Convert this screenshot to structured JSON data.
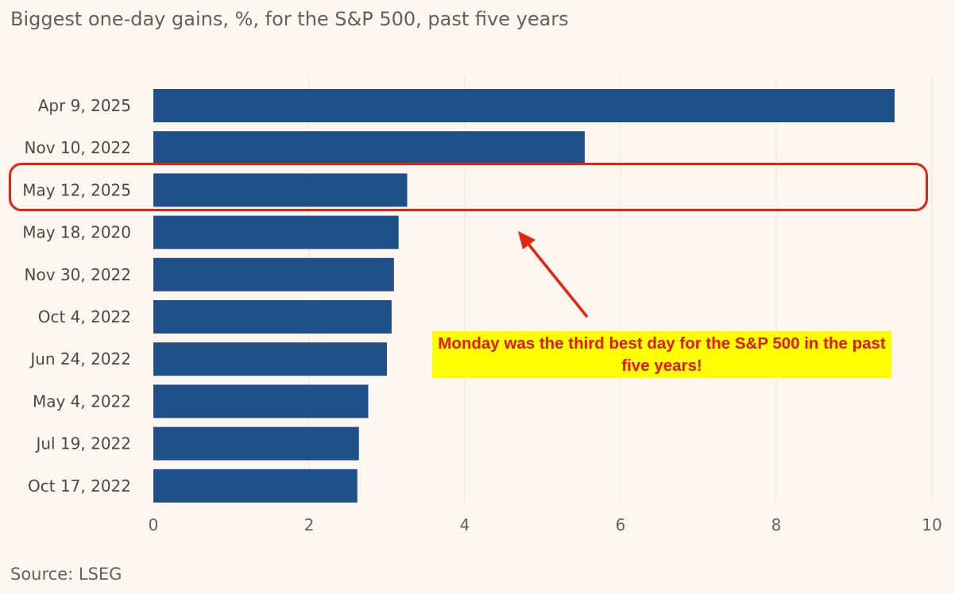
{
  "title": "Biggest one-day gains, %, for the S&P 500, past five years",
  "source": "Source: LSEG",
  "annotation": {
    "text": "Monday was the third best day for the S&P 500 in the past five years!",
    "text_color": "#e8141a",
    "box_color": "#ffff00",
    "highlight_color": "#e8220e",
    "highlighted_category": "May 12, 2025"
  },
  "colors": {
    "bar": "#1f508a",
    "background": "#fff6f0",
    "grid": "#ebe4df"
  },
  "chart_data": {
    "type": "bar",
    "orientation": "horizontal",
    "title": "Biggest one-day gains, %, for the S&P 500, past five years",
    "xlabel": "",
    "ylabel": "",
    "categories": [
      "Apr 9, 2025",
      "Nov 10, 2022",
      "May 12, 2025",
      "May 18, 2020",
      "Nov 30, 2022",
      "Oct 4, 2022",
      "Jun 24, 2022",
      "May 4, 2022",
      "Jul 19, 2022",
      "Oct 17, 2022"
    ],
    "values": [
      9.52,
      5.54,
      3.26,
      3.15,
      3.09,
      3.06,
      3.0,
      2.76,
      2.64,
      2.62
    ],
    "xlim": [
      0,
      10
    ],
    "xticks": [
      0,
      2,
      4,
      6,
      8,
      10
    ],
    "grid": true,
    "legend": "none"
  }
}
